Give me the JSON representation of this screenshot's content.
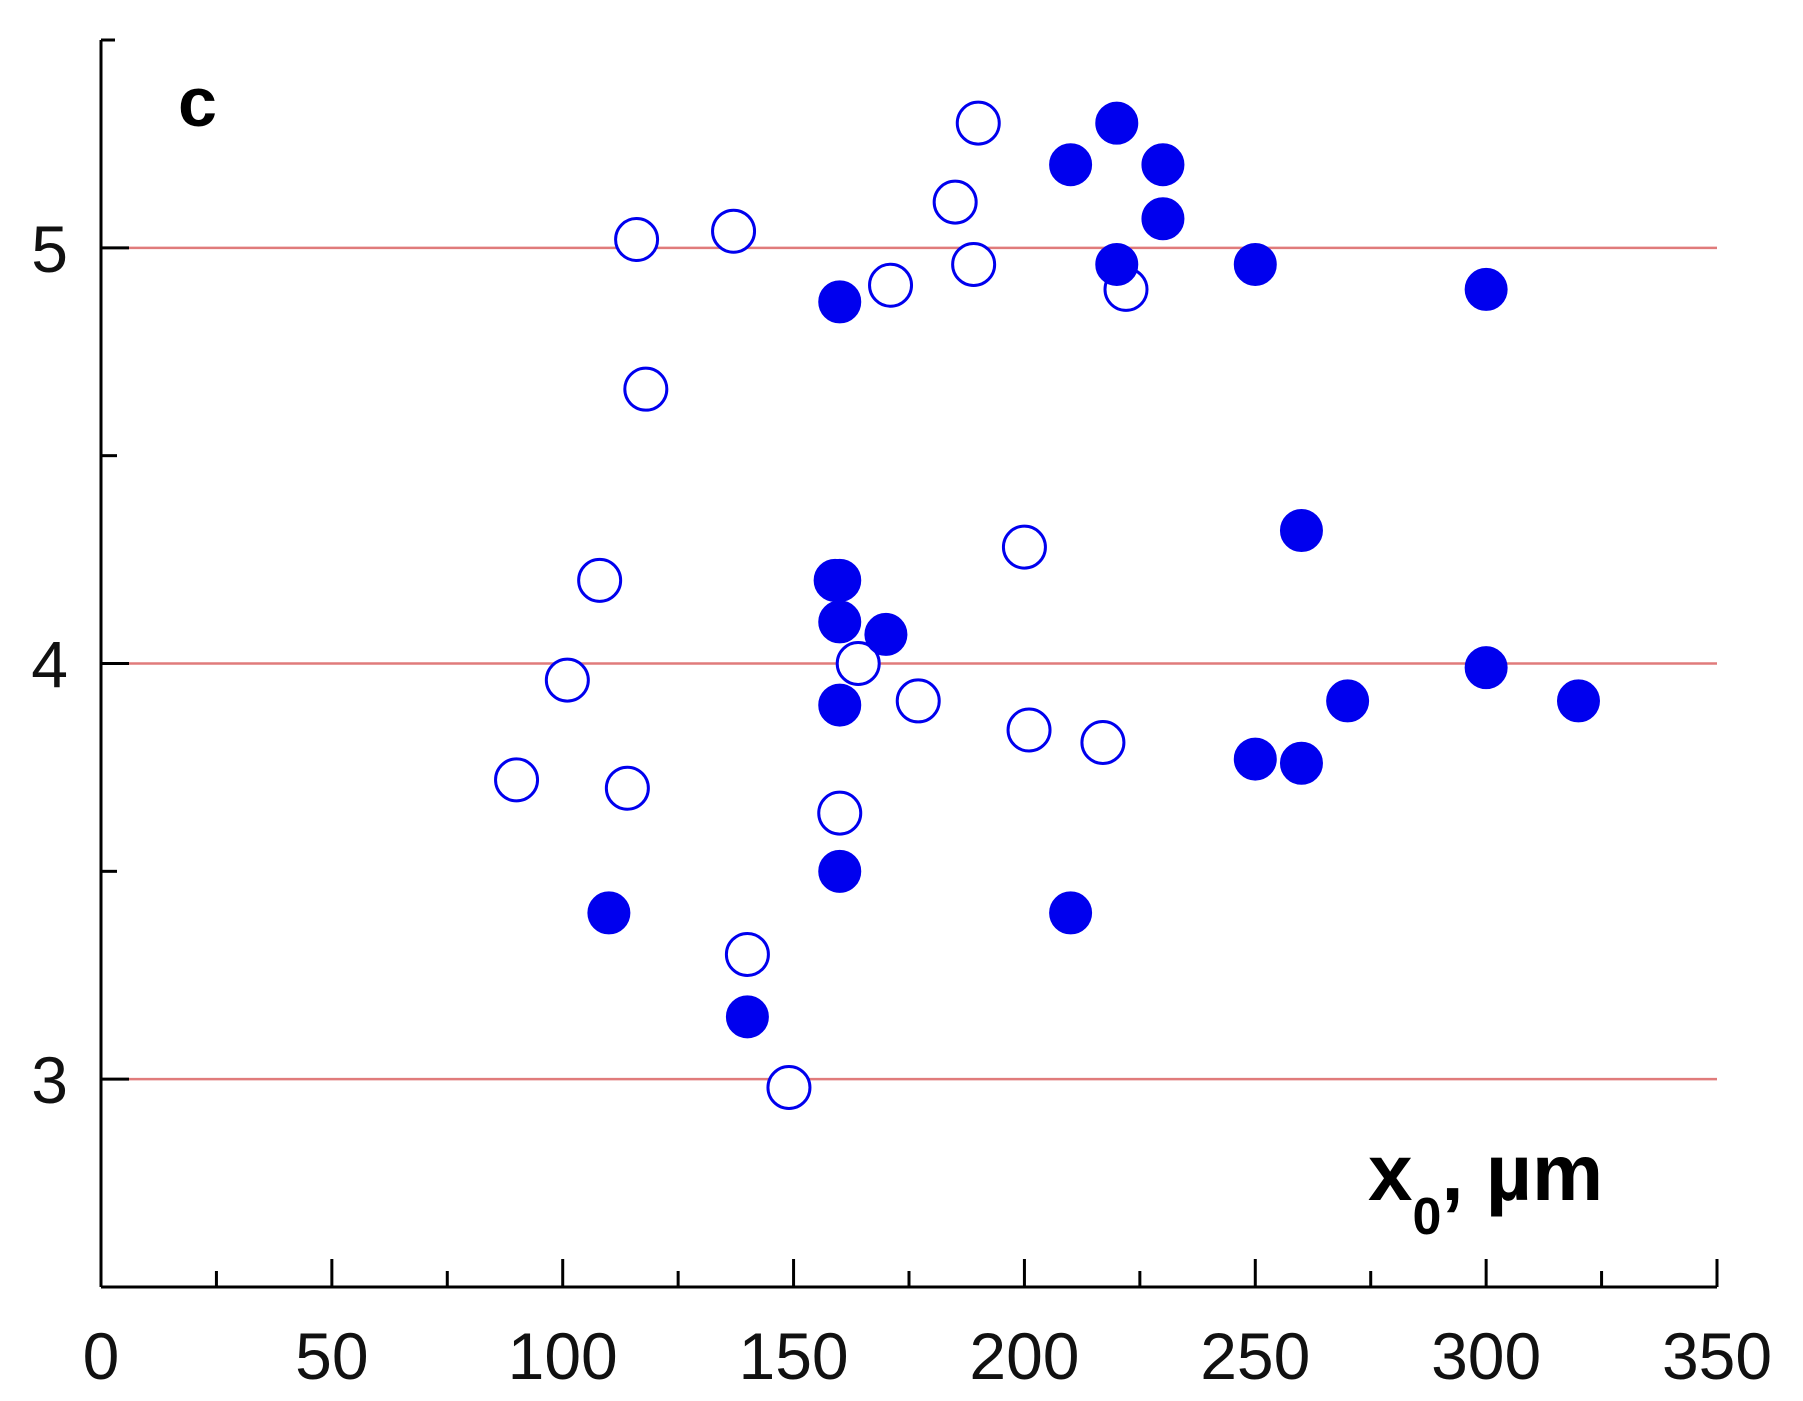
{
  "chart_data": {
    "type": "scatter",
    "panel_label": "c",
    "xlabel": {
      "main": "x",
      "subscript": "0",
      "unit": ", µm"
    },
    "ylabel": "",
    "xlim": [
      0,
      350
    ],
    "ylim": [
      2.5,
      5.5
    ],
    "x_major_ticks": [
      0,
      50,
      100,
      150,
      200,
      250,
      300,
      350
    ],
    "x_tick_labels": [
      "0",
      "50",
      "100",
      "150",
      "200",
      "250",
      "300",
      "350"
    ],
    "x_minor_ticks": [
      25,
      75,
      125,
      175,
      225,
      275,
      325
    ],
    "y_major_ticks": [
      3,
      4,
      5
    ],
    "y_tick_labels": [
      "3",
      "4",
      "5"
    ],
    "y_minor_ticks": [
      3.5,
      4.5
    ],
    "reference_lines_y": [
      3,
      4,
      5
    ],
    "grid": false,
    "legend": "none",
    "colors": {
      "marker": "#0000ee",
      "reference_line": "#e07b7b",
      "axis": "#000000"
    },
    "series": [
      {
        "marker": "open-circle",
        "points": [
          {
            "x": 116,
            "y": 5.02
          },
          {
            "x": 137,
            "y": 5.04
          },
          {
            "x": 190,
            "y": 5.3
          },
          {
            "x": 185,
            "y": 5.11
          },
          {
            "x": 189,
            "y": 4.96
          },
          {
            "x": 171,
            "y": 4.91
          },
          {
            "x": 222,
            "y": 4.9
          },
          {
            "x": 118,
            "y": 4.66
          },
          {
            "x": 108,
            "y": 4.2
          },
          {
            "x": 200,
            "y": 4.28
          },
          {
            "x": 101,
            "y": 3.96
          },
          {
            "x": 164,
            "y": 4.0
          },
          {
            "x": 177,
            "y": 3.91
          },
          {
            "x": 201,
            "y": 3.84
          },
          {
            "x": 217,
            "y": 3.81
          },
          {
            "x": 90,
            "y": 3.72
          },
          {
            "x": 114,
            "y": 3.7
          },
          {
            "x": 160,
            "y": 3.64
          },
          {
            "x": 140,
            "y": 3.3
          },
          {
            "x": 149,
            "y": 2.98
          }
        ]
      },
      {
        "marker": "filled-circle",
        "points": [
          {
            "x": 220,
            "y": 5.3
          },
          {
            "x": 210,
            "y": 5.2
          },
          {
            "x": 230,
            "y": 5.2
          },
          {
            "x": 230,
            "y": 5.07
          },
          {
            "x": 220,
            "y": 4.96
          },
          {
            "x": 250,
            "y": 4.96
          },
          {
            "x": 300,
            "y": 4.9
          },
          {
            "x": 160,
            "y": 4.87
          },
          {
            "x": 260,
            "y": 4.32
          },
          {
            "x": 159,
            "y": 4.2
          },
          {
            "x": 160,
            "y": 4.2
          },
          {
            "x": 160,
            "y": 4.1
          },
          {
            "x": 170,
            "y": 4.07
          },
          {
            "x": 300,
            "y": 3.99
          },
          {
            "x": 160,
            "y": 3.9
          },
          {
            "x": 270,
            "y": 3.91
          },
          {
            "x": 320,
            "y": 3.91
          },
          {
            "x": 250,
            "y": 3.77
          },
          {
            "x": 260,
            "y": 3.76
          },
          {
            "x": 160,
            "y": 3.5
          },
          {
            "x": 110,
            "y": 3.4
          },
          {
            "x": 210,
            "y": 3.4
          },
          {
            "x": 140,
            "y": 3.15
          }
        ]
      }
    ]
  }
}
